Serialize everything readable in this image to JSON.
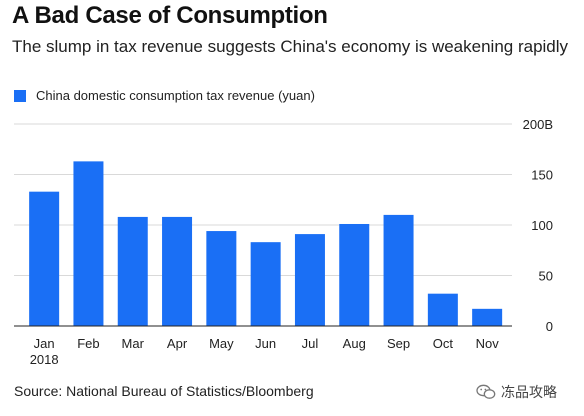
{
  "header": {
    "title": "A Bad Case of Consumption",
    "subtitle": "The slump in tax revenue suggests China's economy is weakening rapidly"
  },
  "legend": {
    "label": "China domestic consumption tax revenue (yuan)"
  },
  "footer": {
    "source": "Source: National Bureau of Statistics/Bloomberg",
    "watermark_text": "冻品攻略"
  },
  "colors": {
    "bar": "#1a6ff5",
    "grid": "#d9d9d9",
    "axis": "#222222"
  },
  "chart_data": {
    "type": "bar",
    "title": "A Bad Case of Consumption",
    "subtitle": "The slump in tax revenue suggests China's economy is weakening rapidly",
    "categories": [
      "Jan",
      "Feb",
      "Mar",
      "Apr",
      "May",
      "Jun",
      "Jul",
      "Aug",
      "Sep",
      "Oct",
      "Nov"
    ],
    "x_sublabel": "2018",
    "series": [
      {
        "name": "China domestic consumption tax revenue (yuan)",
        "values": [
          133,
          163,
          108,
          108,
          94,
          83,
          91,
          101,
          110,
          32,
          17
        ]
      }
    ],
    "y_ticks": [
      "0",
      "50",
      "100",
      "150",
      "200B"
    ],
    "ylim": [
      0,
      200
    ],
    "ylabel": "",
    "xlabel": "",
    "grid": true,
    "y_axis_side": "right",
    "legend_position": "top-left"
  }
}
